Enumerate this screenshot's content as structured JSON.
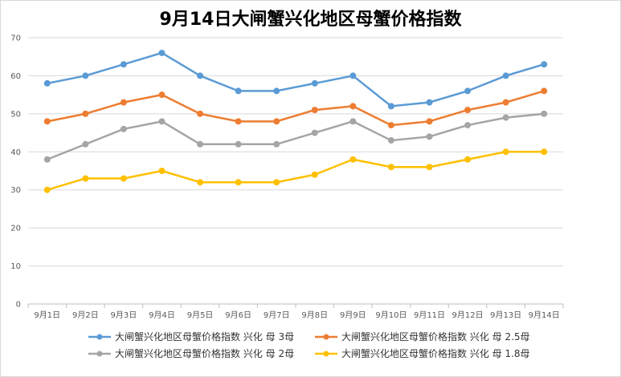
{
  "chart_data": {
    "type": "line",
    "title": "9月14日大闸蟹兴化地区母蟹价格指数",
    "xlabel": "",
    "ylabel": "",
    "ylim": [
      0,
      70
    ],
    "yticks": [
      0,
      10,
      20,
      30,
      40,
      50,
      60,
      70
    ],
    "grid": true,
    "legend_position": "bottom",
    "categories": [
      "9月1日",
      "9月2日",
      "9月3日",
      "9月4日",
      "9月5日",
      "9月6日",
      "9月7日",
      "9月8日",
      "9月9日",
      "9月10日",
      "9月11日",
      "9月12日",
      "9月13日",
      "9月14日"
    ],
    "series": [
      {
        "name": "大闸蟹兴化地区母蟹价格指数 兴化 母 3母",
        "color": "#5b9bd5",
        "values": [
          58,
          60,
          63,
          66,
          60,
          56,
          56,
          58,
          60,
          52,
          53,
          56,
          60,
          63
        ]
      },
      {
        "name": "大闸蟹兴化地区母蟹价格指数 兴化 母 2.5母",
        "color": "#ed7d31",
        "values": [
          48,
          50,
          53,
          55,
          50,
          48,
          48,
          51,
          52,
          47,
          48,
          51,
          53,
          56
        ]
      },
      {
        "name": "大闸蟹兴化地区母蟹价格指数 兴化 母 2母",
        "color": "#a5a5a5",
        "values": [
          38,
          42,
          46,
          48,
          42,
          42,
          42,
          45,
          48,
          43,
          44,
          47,
          49,
          50
        ]
      },
      {
        "name": "大闸蟹兴化地区母蟹价格指数 兴化 母 1.8母",
        "color": "#ffc000",
        "values": [
          30,
          33,
          33,
          35,
          32,
          32,
          32,
          34,
          38,
          36,
          36,
          38,
          40,
          40
        ]
      }
    ]
  }
}
